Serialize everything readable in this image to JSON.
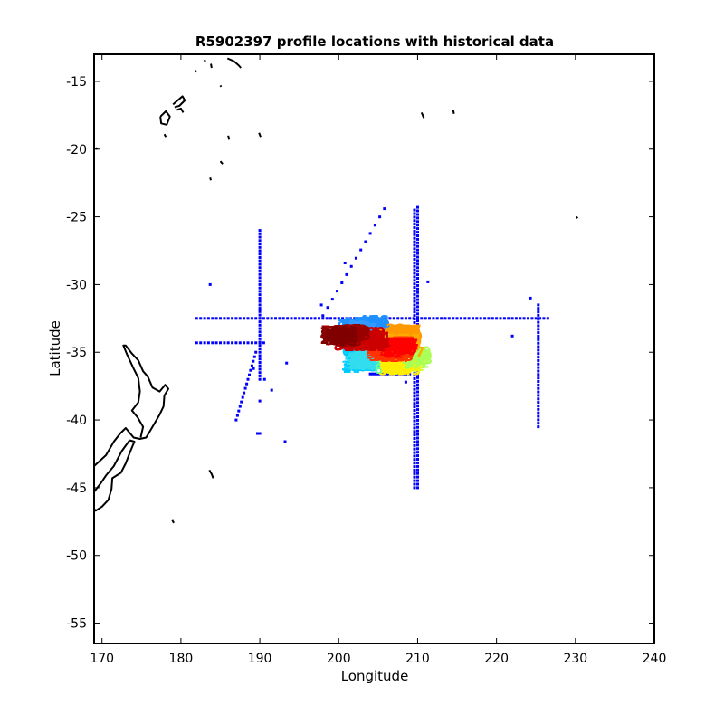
{
  "chart_data": {
    "type": "scatter",
    "title": "R5902397 profile locations with historical data",
    "xlabel": "Longitude",
    "ylabel": "Latitude",
    "xlim": [
      169,
      240
    ],
    "ylim": [
      -56.5,
      -13
    ],
    "xticks": [
      170,
      180,
      190,
      200,
      210,
      220,
      230,
      240
    ],
    "yticks": [
      -15,
      -20,
      -25,
      -30,
      -35,
      -40,
      -45,
      -50,
      -55
    ],
    "grid": false,
    "legend": "none",
    "series": [
      {
        "role": "historical",
        "color": "#0000ff",
        "groups": [
          {
            "kind": "line",
            "from": [
              182,
              -32.5
            ],
            "to": [
              226.5,
              -32.5
            ],
            "n": 90
          },
          {
            "kind": "line",
            "from": [
              209.6,
              -24.5
            ],
            "to": [
              209.6,
              -45
            ],
            "n": 80
          },
          {
            "kind": "line",
            "from": [
              210,
              -24.3
            ],
            "to": [
              210,
              -45
            ],
            "n": 80
          },
          {
            "kind": "line",
            "from": [
              190,
              -26
            ],
            "to": [
              190,
              -37
            ],
            "n": 45
          },
          {
            "kind": "line",
            "from": [
              225.3,
              -31.5
            ],
            "to": [
              225.3,
              -40.5
            ],
            "n": 36
          },
          {
            "kind": "line",
            "from": [
              182,
              -34.3
            ],
            "to": [
              190.5,
              -34.3
            ],
            "n": 18
          },
          {
            "kind": "line",
            "from": [
              187,
              -40
            ],
            "to": [
              189.5,
              -35
            ],
            "n": 16
          },
          {
            "kind": "line",
            "from": [
              198,
              -32.3
            ],
            "to": [
              205.8,
              -24.4
            ],
            "n": 14
          },
          {
            "kind": "line",
            "from": [
              204,
              -36.6
            ],
            "to": [
              209,
              -36.6
            ],
            "n": 20
          },
          {
            "kind": "points",
            "points": [
              [
                183.7,
                -30
              ],
              [
                189.7,
                -41
              ],
              [
                190,
                -41
              ],
              [
                193.2,
                -41.6
              ],
              [
                193.4,
                -35.8
              ],
              [
                190.6,
                -37
              ],
              [
                191.5,
                -37.8
              ],
              [
                197.8,
                -31.5
              ],
              [
                211.3,
                -29.8
              ],
              [
                222,
                -33.8
              ],
              [
                224.3,
                -31
              ],
              [
                200.8,
                -28.4
              ],
              [
                189.2,
                -36.2
              ],
              [
                190,
                -38.6
              ],
              [
                209.6,
                -33.2
              ],
              [
                206.8,
                -33.2
              ],
              [
                208.5,
                -37.2
              ]
            ]
          }
        ]
      },
      {
        "role": "float-profiles",
        "color_scale": [
          "#00008f",
          "#0000ff",
          "#0080ff",
          "#00ffff",
          "#80ff80",
          "#ffff00",
          "#ff8000",
          "#ff0000",
          "#800000"
        ],
        "clusters": [
          {
            "color": "#00ccff",
            "x": [
              201.5,
              205.5
            ],
            "y": [
              -36.2,
              -34.8
            ],
            "n": 55
          },
          {
            "color": "#33ddee",
            "x": [
              202,
              204
            ],
            "y": [
              -36,
              -35.2
            ],
            "n": 25
          },
          {
            "color": "#66ff99",
            "x": [
              205.5,
              208.5
            ],
            "y": [
              -36.3,
              -35.3
            ],
            "n": 20
          },
          {
            "color": "#ccff33",
            "x": [
              207,
              210
            ],
            "y": [
              -36.2,
              -35.2
            ],
            "n": 35
          },
          {
            "color": "#ffee00",
            "x": [
              206,
              209.5
            ],
            "y": [
              -36.4,
              -35.4
            ],
            "n": 30
          },
          {
            "color": "#aaff55",
            "x": [
              209,
              210.8
            ],
            "y": [
              -36,
              -34.9
            ],
            "n": 15
          },
          {
            "color": "#1e90ff",
            "x": [
              201,
              205.5
            ],
            "y": [
              -33.5,
              -32.6
            ],
            "n": 45
          },
          {
            "color": "#3399ff",
            "x": [
              202,
              204.5
            ],
            "y": [
              -34,
              -33
            ],
            "n": 20
          },
          {
            "color": "#ff9900",
            "x": [
              206,
              209.5
            ],
            "y": [
              -34.2,
              -33.2
            ],
            "n": 50
          },
          {
            "color": "#ffaa00",
            "x": [
              207,
              209.8
            ],
            "y": [
              -35,
              -34
            ],
            "n": 30
          },
          {
            "color": "#ff3300",
            "x": [
              204.5,
              208.5
            ],
            "y": [
              -35.4,
              -34.2
            ],
            "n": 50
          },
          {
            "color": "#ff0000",
            "x": [
              205.5,
              209.2
            ],
            "y": [
              -35.1,
              -34.3
            ],
            "n": 40
          },
          {
            "color": "#cc0000",
            "x": [
              200.5,
              205.5
            ],
            "y": [
              -34.6,
              -33.4
            ],
            "n": 55
          },
          {
            "color": "#990000",
            "x": [
              198.8,
              203
            ],
            "y": [
              -34.3,
              -33.3
            ],
            "n": 40
          },
          {
            "color": "#800000",
            "x": [
              198.5,
              201.5
            ],
            "y": [
              -34.2,
              -33.4
            ],
            "n": 25
          }
        ]
      },
      {
        "role": "coastline",
        "color": "#000000",
        "polylines": [
          [
            [
              169,
              -43.4
            ],
            [
              170.5,
              -42.6
            ],
            [
              171.5,
              -41.6
            ],
            [
              172.3,
              -41
            ],
            [
              173,
              -40.6
            ],
            [
              174,
              -41.3
            ],
            [
              174.8,
              -41.4
            ],
            [
              175.6,
              -41.3
            ],
            [
              176.5,
              -40.4
            ],
            [
              177.3,
              -39.6
            ],
            [
              177.8,
              -39
            ],
            [
              177.9,
              -38.2
            ],
            [
              178.4,
              -37.7
            ],
            [
              178,
              -37.4
            ],
            [
              177.3,
              -37.9
            ],
            [
              176.4,
              -37.6
            ],
            [
              175.8,
              -36.8
            ],
            [
              175.2,
              -36.4
            ],
            [
              174.6,
              -35.6
            ],
            [
              173.8,
              -35.1
            ],
            [
              173,
              -34.5
            ],
            [
              172.7,
              -34.5
            ],
            [
              173.2,
              -35.2
            ],
            [
              174,
              -36.2
            ],
            [
              174.6,
              -36.9
            ],
            [
              174.8,
              -37.9
            ],
            [
              174.6,
              -38.7
            ],
            [
              173.8,
              -39.3
            ],
            [
              174.5,
              -39.8
            ],
            [
              175.2,
              -40.5
            ],
            [
              174.9,
              -41.3
            ]
          ],
          [
            [
              173.5,
              -41.5
            ],
            [
              172.5,
              -42.3
            ],
            [
              171.5,
              -43.4
            ],
            [
              170.5,
              -44.1
            ],
            [
              169.8,
              -44.7
            ],
            [
              169,
              -45.3
            ],
            [
              168.5,
              -46.2
            ],
            [
              169.2,
              -46.7
            ],
            [
              170,
              -46.4
            ],
            [
              170.8,
              -45.9
            ],
            [
              171.2,
              -45.1
            ],
            [
              171.3,
              -44.3
            ],
            [
              172.4,
              -43.9
            ],
            [
              173,
              -43.2
            ],
            [
              173.6,
              -42.3
            ],
            [
              174.1,
              -41.6
            ],
            [
              173.5,
              -41.5
            ]
          ],
          [
            [
              177.4,
              -17.6
            ],
            [
              178.1,
              -17.2
            ],
            [
              178.6,
              -17.6
            ],
            [
              178.2,
              -18.2
            ],
            [
              177.5,
              -18.1
            ],
            [
              177.4,
              -17.6
            ]
          ],
          [
            [
              179,
              -16.7
            ],
            [
              179.6,
              -16.4
            ],
            [
              180.2,
              -16.1
            ],
            [
              180.5,
              -16.4
            ],
            [
              179.8,
              -16.8
            ],
            [
              179.2,
              -16.9
            ]
          ],
          [
            [
              179.5,
              -17.1
            ],
            [
              180,
              -17
            ],
            [
              180.3,
              -17.3
            ]
          ],
          [
            [
              185,
              -20.9
            ],
            [
              185.3,
              -21.1
            ]
          ],
          [
            [
              183.7,
              -22.1
            ],
            [
              183.8,
              -22.3
            ]
          ],
          [
            [
              177.9,
              -18.9
            ],
            [
              178.1,
              -19.1
            ]
          ],
          [
            [
              183.6,
              -43.7
            ],
            [
              183.9,
              -44
            ],
            [
              184.1,
              -44.3
            ]
          ],
          [
            [
              178.9,
              -47.4
            ],
            [
              179.1,
              -47.6
            ]
          ],
          [
            [
              186,
              -19
            ],
            [
              186.1,
              -19.3
            ]
          ],
          [
            [
              185,
              -15.3
            ],
            [
              185.1,
              -15.4
            ]
          ],
          [
            [
              183,
              -13.4
            ],
            [
              183.1,
              -13.6
            ]
          ],
          [
            [
              183.8,
              -13.7
            ],
            [
              183.9,
              -14
            ]
          ],
          [
            [
              185.9,
              -13.3
            ],
            [
              186.7,
              -13.5
            ],
            [
              187.3,
              -13.8
            ],
            [
              187.6,
              -14
            ]
          ],
          [
            [
              181.8,
              -14.3
            ],
            [
              182,
              -14.2
            ]
          ],
          [
            [
              189.9,
              -18.8
            ],
            [
              190.1,
              -19.1
            ]
          ],
          [
            [
              210.5,
              -17.3
            ],
            [
              210.8,
              -17.7
            ]
          ],
          [
            [
              214.5,
              -17.1
            ],
            [
              214.6,
              -17.4
            ]
          ],
          [
            [
              230.1,
              -25
            ],
            [
              230.3,
              -25.1
            ]
          ],
          [
            [
              169.2,
              -19.9
            ],
            [
              169.4,
              -20
            ]
          ]
        ]
      }
    ]
  }
}
